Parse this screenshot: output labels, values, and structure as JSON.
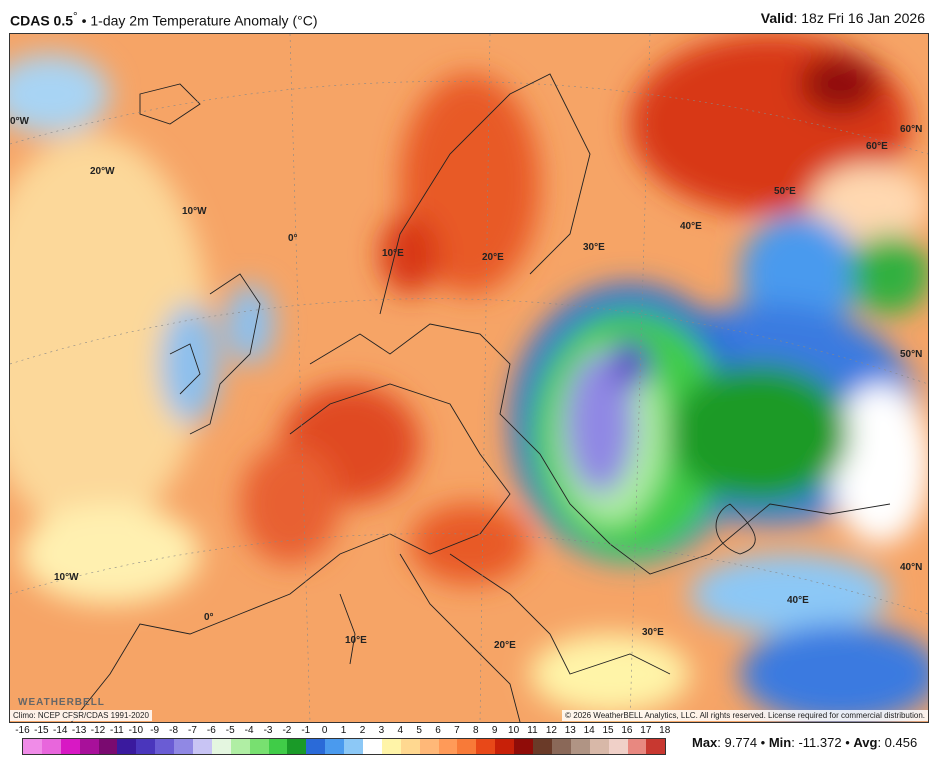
{
  "header": {
    "model": "CDAS 0.5",
    "model_suffix": "°",
    "title": " • 1-day 2m Temperature Anomaly (°C)",
    "valid_label": "Valid",
    "valid_value": ": 18z Fri 16 Jan 2026"
  },
  "map": {
    "lon_labels": [
      "0°W",
      "20°W",
      "10°W",
      "0°",
      "10°E",
      "20°E",
      "30°E",
      "40°E",
      "50°E",
      "60°E",
      "10°W",
      "0°",
      "10°E",
      "20°E",
      "30°E",
      "40°E"
    ],
    "lat_labels": [
      "60°N",
      "50°N",
      "40°N"
    ],
    "climo": "Climo: NCEP CFSR/CDAS 1991-2020",
    "copyright": "© 2026 WeatherBELL Analytics, LLC. All rights reserved. License required for commercial distribution.",
    "logo": "WeatherBELL"
  },
  "colorbar": {
    "ticks": [
      "-16",
      "-15",
      "-14",
      "-13",
      "-12",
      "-11",
      "-10",
      "-9",
      "-8",
      "-7",
      "-6",
      "-5",
      "-4",
      "-3",
      "-2",
      "-1",
      "0",
      "1",
      "2",
      "3",
      "4",
      "5",
      "6",
      "7",
      "8",
      "9",
      "10",
      "11",
      "12",
      "13",
      "14",
      "15",
      "16",
      "17",
      "18"
    ],
    "colors": [
      "#f08ce8",
      "#e866dc",
      "#d818c4",
      "#a8109a",
      "#7a0a70",
      "#3a1a9e",
      "#4a36bc",
      "#6a5cd4",
      "#9088e4",
      "#c8c4f4",
      "#e4f6e0",
      "#b0ee a4",
      "#78e070",
      "#40cc48",
      "#1a9a28",
      "#2a6ad8",
      "#4a9aee",
      "#8cc8f6",
      "#ffffff",
      "#fff4a8",
      "#ffd890",
      "#ffb878",
      "#ff9a58",
      "#f87a38",
      "#e84818",
      "#c82008",
      "#900c08",
      "#6a3a28",
      "#8a6858",
      "#b09484",
      "#d8b8a8",
      "#f0d0c8",
      "#e88880",
      "#c83830"
    ]
  },
  "stats": {
    "max_label": "Max",
    "max": ": 9.774",
    "min_label": "Min",
    "min": ": -11.372",
    "avg_label": "Avg",
    "avg": ": 0.456",
    "sep": " • "
  }
}
